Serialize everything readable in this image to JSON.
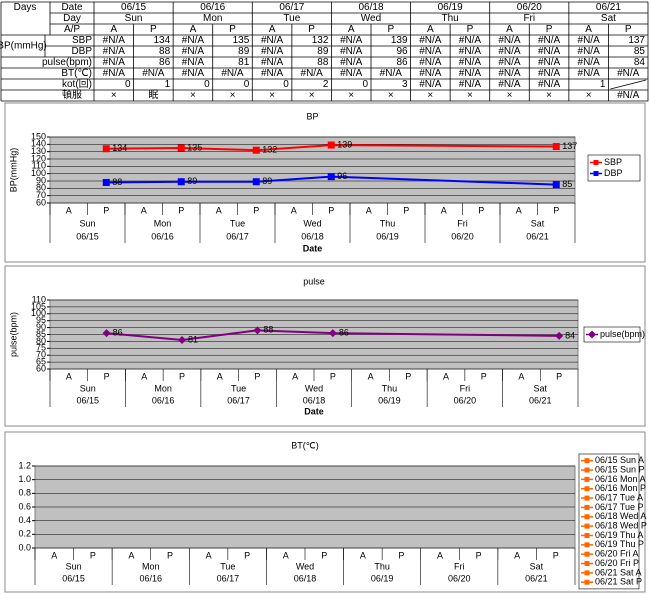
{
  "table": {
    "corner": "Days",
    "group_label": "BP(mmHg)",
    "row_headers": [
      "Date",
      "Day",
      "A/P",
      "SBP",
      "DBP",
      "pulse(bpm)",
      "BT(℃)",
      "kot(回)",
      "頓服"
    ],
    "dates": [
      "06/15",
      "06/16",
      "06/17",
      "06/18",
      "06/19",
      "06/20",
      "06/21"
    ],
    "days": [
      "Sun",
      "Mon",
      "Tue",
      "Wed",
      "Thu",
      "Fri",
      "Sat"
    ],
    "ap": [
      "A",
      "P",
      "A",
      "P",
      "A",
      "P",
      "A",
      "P",
      "A",
      "P",
      "A",
      "P",
      "A",
      "P"
    ],
    "rows": [
      [
        "#N/A",
        134,
        "#N/A",
        135,
        "#N/A",
        132,
        "#N/A",
        139,
        "#N/A",
        "#N/A",
        "#N/A",
        "#N/A",
        "#N/A",
        137
      ],
      [
        "#N/A",
        88,
        "#N/A",
        89,
        "#N/A",
        89,
        "#N/A",
        96,
        "#N/A",
        "#N/A",
        "#N/A",
        "#N/A",
        "#N/A",
        85
      ],
      [
        "#N/A",
        86,
        "#N/A",
        81,
        "#N/A",
        88,
        "#N/A",
        86,
        "#N/A",
        "#N/A",
        "#N/A",
        "#N/A",
        "#N/A",
        84
      ],
      [
        "#N/A",
        "#N/A",
        "#N/A",
        "#N/A",
        "#N/A",
        "#N/A",
        "#N/A",
        "#N/A",
        "#N/A",
        "#N/A",
        "#N/A",
        "#N/A",
        "#N/A",
        "#N/A"
      ],
      [
        0,
        1,
        0,
        0,
        0,
        2,
        0,
        3,
        "#N/A",
        "#N/A",
        "#N/A",
        "#N/A",
        1,
        null
      ],
      [
        "×",
        "眠",
        "×",
        "×",
        "×",
        "×",
        "×",
        "×",
        "×",
        "×",
        "×",
        "×",
        "×",
        "#N/A"
      ]
    ]
  },
  "chart_data": [
    {
      "type": "line",
      "title": "BP",
      "y_label": "BP(mmHg)",
      "x_label": "Date",
      "categories": [
        "A",
        "P",
        "A",
        "P",
        "A",
        "P",
        "A",
        "P",
        "A",
        "P",
        "A",
        "P",
        "A",
        "P"
      ],
      "days": [
        "Sun",
        "Mon",
        "Tue",
        "Wed",
        "Thu",
        "Fri",
        "Sat"
      ],
      "dates": [
        "06/15",
        "06/16",
        "06/17",
        "06/18",
        "06/19",
        "06/20",
        "06/21"
      ],
      "series": [
        {
          "name": "SBP",
          "color": "#ff0000",
          "marker": "square",
          "values": [
            null,
            134,
            null,
            135,
            null,
            132,
            null,
            139,
            null,
            null,
            null,
            null,
            null,
            137
          ]
        },
        {
          "name": "DBP",
          "color": "#0000ff",
          "marker": "square",
          "values": [
            null,
            88,
            null,
            89,
            null,
            89,
            null,
            96,
            null,
            null,
            null,
            null,
            null,
            85
          ]
        }
      ],
      "ylim": [
        60,
        150
      ],
      "yticks": [
        60,
        70,
        80,
        90,
        100,
        110,
        120,
        130,
        140,
        150
      ],
      "grid": true,
      "connect_gaps": true,
      "data_labels": true,
      "legend": "right",
      "plot_color": "#c0c0c0"
    },
    {
      "type": "line",
      "title": "pulse",
      "y_label": "pulse(bpm)",
      "x_label": "Date",
      "categories": [
        "A",
        "P",
        "A",
        "P",
        "A",
        "P",
        "A",
        "P",
        "A",
        "P",
        "A",
        "P",
        "A",
        "P"
      ],
      "days": [
        "Sun",
        "Mon",
        "Tue",
        "Wed",
        "Thu",
        "Fri",
        "Sat"
      ],
      "dates": [
        "06/15",
        "06/16",
        "06/17",
        "06/18",
        "06/19",
        "06/20",
        "06/21"
      ],
      "series": [
        {
          "name": "pulse(bpm)",
          "color": "#800080",
          "marker": "diamond",
          "values": [
            null,
            86,
            null,
            81,
            null,
            88,
            null,
            86,
            null,
            null,
            null,
            null,
            null,
            84
          ]
        }
      ],
      "ylim": [
        60,
        110
      ],
      "yticks": [
        60,
        65,
        70,
        75,
        80,
        85,
        90,
        95,
        100,
        105,
        110
      ],
      "grid": true,
      "connect_gaps": true,
      "data_labels": true,
      "legend": "right",
      "plot_color": "#c0c0c0"
    },
    {
      "type": "line",
      "title": "BT(℃)",
      "categories": [
        "A",
        "P",
        "A",
        "P",
        "A",
        "P",
        "A",
        "P",
        "A",
        "P",
        "A",
        "P",
        "A",
        "P"
      ],
      "days": [
        "Sun",
        "Mon",
        "Tue",
        "Wed",
        "Thu",
        "Fri",
        "Sat"
      ],
      "dates": [
        "06/15",
        "06/16",
        "06/17",
        "06/18",
        "06/19",
        "06/20",
        "06/21"
      ],
      "series": [
        {
          "name": "06/15 Sun A",
          "color": "#ff6600",
          "marker": "square",
          "values": [
            null,
            null,
            null,
            null,
            null,
            null,
            null,
            null,
            null,
            null,
            null,
            null,
            null,
            null
          ]
        },
        {
          "name": "06/15 Sun P",
          "color": "#ff6600",
          "marker": "square",
          "values": [
            null,
            null,
            null,
            null,
            null,
            null,
            null,
            null,
            null,
            null,
            null,
            null,
            null,
            null
          ]
        },
        {
          "name": "06/16 Mon A",
          "color": "#ff6600",
          "marker": "square",
          "values": [
            null,
            null,
            null,
            null,
            null,
            null,
            null,
            null,
            null,
            null,
            null,
            null,
            null,
            null
          ]
        },
        {
          "name": "06/16 Mon P",
          "color": "#ff6600",
          "marker": "square",
          "values": [
            null,
            null,
            null,
            null,
            null,
            null,
            null,
            null,
            null,
            null,
            null,
            null,
            null,
            null
          ]
        },
        {
          "name": "06/17 Tue A",
          "color": "#ff6600",
          "marker": "square",
          "values": [
            null,
            null,
            null,
            null,
            null,
            null,
            null,
            null,
            null,
            null,
            null,
            null,
            null,
            null
          ]
        },
        {
          "name": "06/17 Tue P",
          "color": "#ff6600",
          "marker": "square",
          "values": [
            null,
            null,
            null,
            null,
            null,
            null,
            null,
            null,
            null,
            null,
            null,
            null,
            null,
            null
          ]
        },
        {
          "name": "06/18 Wed A",
          "color": "#ff6600",
          "marker": "square",
          "values": [
            null,
            null,
            null,
            null,
            null,
            null,
            null,
            null,
            null,
            null,
            null,
            null,
            null,
            null
          ]
        },
        {
          "name": "06/18 Wed P",
          "color": "#ff6600",
          "marker": "square",
          "values": [
            null,
            null,
            null,
            null,
            null,
            null,
            null,
            null,
            null,
            null,
            null,
            null,
            null,
            null
          ]
        },
        {
          "name": "06/19 Thu A",
          "color": "#ff6600",
          "marker": "square",
          "values": [
            null,
            null,
            null,
            null,
            null,
            null,
            null,
            null,
            null,
            null,
            null,
            null,
            null,
            null
          ]
        },
        {
          "name": "06/19 Thu P",
          "color": "#ff6600",
          "marker": "square",
          "values": [
            null,
            null,
            null,
            null,
            null,
            null,
            null,
            null,
            null,
            null,
            null,
            null,
            null,
            null
          ]
        },
        {
          "name": "06/20 Fri A",
          "color": "#ff6600",
          "marker": "square",
          "values": [
            null,
            null,
            null,
            null,
            null,
            null,
            null,
            null,
            null,
            null,
            null,
            null,
            null,
            null
          ]
        },
        {
          "name": "06/20 Fri P",
          "color": "#ff6600",
          "marker": "square",
          "values": [
            null,
            null,
            null,
            null,
            null,
            null,
            null,
            null,
            null,
            null,
            null,
            null,
            null,
            null
          ]
        },
        {
          "name": "06/21 Sat A",
          "color": "#ff6600",
          "marker": "square",
          "values": [
            null,
            null,
            null,
            null,
            null,
            null,
            null,
            null,
            null,
            null,
            null,
            null,
            null,
            null
          ]
        },
        {
          "name": "06/21 Sat P",
          "color": "#ff6600",
          "marker": "square",
          "values": [
            null,
            null,
            null,
            null,
            null,
            null,
            null,
            null,
            null,
            null,
            null,
            null,
            null,
            null
          ]
        }
      ],
      "ylim": [
        0,
        1.2
      ],
      "yticks": [
        {
          "value": 0,
          "label": "0.0"
        },
        0.2,
        0.4,
        0.6,
        0.8,
        {
          "value": 1,
          "label": "1.0"
        },
        1.2
      ],
      "grid": true,
      "connect_gaps": true,
      "data_labels": true,
      "legend": "right",
      "plot_color": "#c0c0c0"
    }
  ]
}
